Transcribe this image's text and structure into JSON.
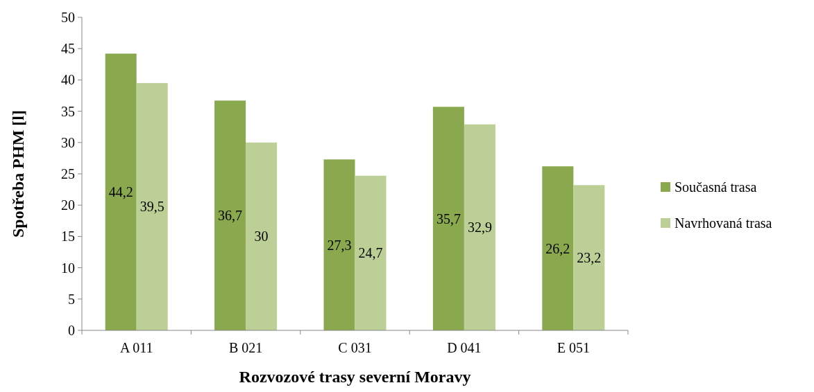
{
  "chart_data": {
    "type": "bar",
    "xlabel": "Rozvozové trasy severní Moravy",
    "ylabel": "Spotřeba PHM [l]",
    "categories": [
      "A 011",
      "B 021",
      "C 031",
      "D 041",
      "E 051"
    ],
    "series": [
      {
        "name": "Současná trasa",
        "color": "#8aa84e",
        "values": [
          44.2,
          36.7,
          27.3,
          35.7,
          26.2
        ],
        "value_labels": [
          "44,2",
          "36,7",
          "27,3",
          "35,7",
          "26,2"
        ]
      },
      {
        "name": "Navrhovaná trasa",
        "color": "#bccf96",
        "values": [
          39.5,
          30,
          24.7,
          32.9,
          23.2
        ],
        "value_labels": [
          "39,5",
          "30",
          "24,7",
          "32,9",
          "23,2"
        ]
      }
    ],
    "ylim": [
      0,
      50
    ],
    "yticks": [
      0,
      5,
      10,
      15,
      20,
      25,
      30,
      35,
      40,
      45,
      50
    ],
    "grid": false,
    "legend": "right"
  }
}
